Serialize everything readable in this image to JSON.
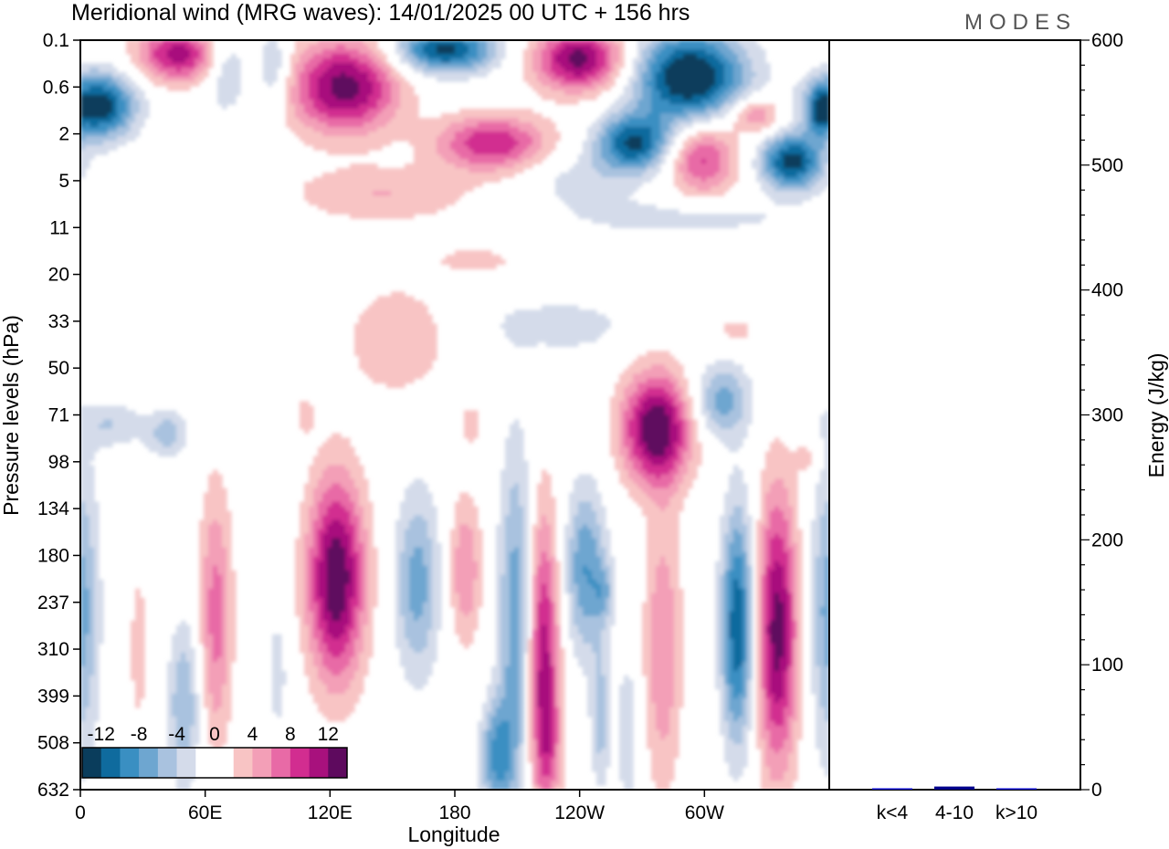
{
  "title": "Meridional wind (MRG waves):  14/01/2025  00 UTC  + 156 hrs",
  "logo": "MODES",
  "chart_data": [
    {
      "type": "heatmap",
      "title": "Meridional wind (MRG waves):  14/01/2025  00 UTC  + 156 hrs",
      "xlabel": "Longitude",
      "ylabel": "Pressure levels (hPa)",
      "x_ticks": [
        "0",
        "60E",
        "120E",
        "180",
        "120W",
        "60W"
      ],
      "y_ticks": [
        "0.1",
        "0.6",
        "2",
        "5",
        "11",
        "20",
        "33",
        "50",
        "71",
        "98",
        "134",
        "180",
        "237",
        "310",
        "399",
        "508",
        "632"
      ],
      "y_scale": "categorical pressure levels, increasing downward",
      "colorbar": {
        "labels": [
          "-12",
          "-8",
          "-4",
          "0",
          "4",
          "8",
          "12"
        ],
        "colors": [
          "#0a3d5c",
          "#0f6b9e",
          "#3a8fc2",
          "#6ea6d0",
          "#a9c2df",
          "#d4dbea",
          "#ffffff",
          "#ffffff",
          "#f8c4c4",
          "#f39fb7",
          "#e86aa6",
          "#d22d90",
          "#a8117d",
          "#5e0a5e"
        ],
        "placement": "bottom-left"
      },
      "blobs": [
        {
          "lon": 8,
          "level": 1.4,
          "value": -14,
          "rx": 18,
          "ry": 0.7
        },
        {
          "lon": 47,
          "level": 0.3,
          "value": 11,
          "rx": 20,
          "ry": 0.6
        },
        {
          "lon": 70,
          "level": 0.6,
          "value": -5,
          "rx": 10,
          "ry": 0.9
        },
        {
          "lon": 93,
          "level": 0.6,
          "value": -5,
          "rx": 8,
          "ry": 0.8
        },
        {
          "lon": 127,
          "level": 1.0,
          "value": 13,
          "rx": 26,
          "ry": 1.0
        },
        {
          "lon": 175,
          "level": 0.2,
          "value": -13,
          "rx": 24,
          "ry": 0.5
        },
        {
          "lon": 198,
          "level": 2.2,
          "value": 10,
          "rx": 27,
          "ry": 0.6
        },
        {
          "lon": 240,
          "level": 0.4,
          "value": 13,
          "rx": 22,
          "ry": 0.7
        },
        {
          "lon": 266,
          "level": 2.2,
          "value": -12,
          "rx": 18,
          "ry": 0.6
        },
        {
          "lon": 293,
          "level": 0.8,
          "value": -15,
          "rx": 27,
          "ry": 1.0
        },
        {
          "lon": 299,
          "level": 2.5,
          "value": 9,
          "rx": 17,
          "ry": 0.8
        },
        {
          "lon": 324,
          "level": 1.6,
          "value": 7,
          "rx": 13,
          "ry": 0.4
        },
        {
          "lon": 342,
          "level": 2.6,
          "value": -13,
          "rx": 15,
          "ry": 0.6
        },
        {
          "lon": 355,
          "level": 1.5,
          "value": -6,
          "rx": 5,
          "ry": 0.5
        },
        {
          "lon": 145,
          "level": 3.3,
          "value": 4,
          "rx": 44,
          "ry": 0.6
        },
        {
          "lon": 92,
          "level": 2.8,
          "value": 3,
          "rx": 12,
          "ry": 0.5
        },
        {
          "lon": 95,
          "level": 2.9,
          "value": -3,
          "rx": 8,
          "ry": 0.6
        },
        {
          "lon": 240,
          "level": 3.0,
          "value": -3,
          "rx": 28,
          "ry": 0.6
        },
        {
          "lon": 290,
          "level": 3.8,
          "value": -3,
          "rx": 58,
          "ry": 0.4
        },
        {
          "lon": 190,
          "level": 4.7,
          "value": 3,
          "rx": 22,
          "ry": 0.3
        },
        {
          "lon": 62,
          "level": 5.0,
          "value": 2,
          "rx": 10,
          "ry": 0.3
        },
        {
          "lon": 152,
          "level": 6.4,
          "value": 4,
          "rx": 24,
          "ry": 1.2
        },
        {
          "lon": 230,
          "level": 6.1,
          "value": -4,
          "rx": 30,
          "ry": 0.5
        },
        {
          "lon": 315,
          "level": 6.2,
          "value": 3,
          "rx": 10,
          "ry": 0.3
        },
        {
          "lon": 15,
          "level": 8.2,
          "value": -4,
          "rx": 16,
          "ry": 0.5
        },
        {
          "lon": 42,
          "level": 8.4,
          "value": -5,
          "rx": 10,
          "ry": 0.5
        },
        {
          "lon": 108,
          "level": 8.0,
          "value": 3,
          "rx": 5,
          "ry": 0.4
        },
        {
          "lon": 277,
          "level": 8.3,
          "value": 14,
          "rx": 17,
          "ry": 1.2
        },
        {
          "lon": 308,
          "level": 7.7,
          "value": -7,
          "rx": 14,
          "ry": 0.8
        },
        {
          "lon": 188,
          "level": 8.2,
          "value": 3,
          "rx": 6,
          "ry": 0.5
        },
        {
          "lon": 350,
          "level": 8.9,
          "value": 3,
          "rx": 6,
          "ry": 0.4
        },
        {
          "lon": 123,
          "level": 11.5,
          "value": 14,
          "rx": 14,
          "ry": 2.2
        },
        {
          "lon": 162,
          "level": 11.6,
          "value": -7,
          "rx": 11,
          "ry": 2.0
        },
        {
          "lon": 185,
          "level": 11.3,
          "value": 6,
          "rx": 8,
          "ry": 1.6
        },
        {
          "lon": 210,
          "level": 12.5,
          "value": -8,
          "rx": 9,
          "ry": 3.8
        },
        {
          "lon": 222,
          "level": 13.3,
          "value": 12,
          "rx": 8,
          "ry": 3.3
        },
        {
          "lon": 243,
          "level": 11.3,
          "value": -8,
          "rx": 10,
          "ry": 1.8
        },
        {
          "lon": 252,
          "level": 11.8,
          "value": -4,
          "rx": 5,
          "ry": 0.6
        },
        {
          "lon": 280,
          "level": 13.0,
          "value": 6,
          "rx": 9,
          "ry": 3.0
        },
        {
          "lon": 316,
          "level": 12.5,
          "value": -12,
          "rx": 8,
          "ry": 2.5
        },
        {
          "lon": 335,
          "level": 12.6,
          "value": 13,
          "rx": 10,
          "ry": 3.0
        },
        {
          "lon": 360,
          "level": 12.2,
          "value": -7,
          "rx": 9,
          "ry": 3.2
        },
        {
          "lon": 65,
          "level": 12.3,
          "value": 7,
          "rx": 8,
          "ry": 2.8
        },
        {
          "lon": 50,
          "level": 14.2,
          "value": -6,
          "rx": 8,
          "ry": 1.8
        },
        {
          "lon": 200,
          "level": 15.3,
          "value": -8,
          "rx": 8,
          "ry": 1.2
        },
        {
          "lon": 226,
          "level": 15.0,
          "value": 3,
          "rx": 6,
          "ry": 1.2
        },
        {
          "lon": 28,
          "level": 13.0,
          "value": 3,
          "rx": 5,
          "ry": 2.0
        },
        {
          "lon": 95,
          "level": 13.5,
          "value": -3,
          "rx": 5,
          "ry": 1.6
        },
        {
          "lon": 250,
          "level": 14.5,
          "value": -5,
          "rx": 5,
          "ry": 1.5
        },
        {
          "lon": 263,
          "level": 14.8,
          "value": -4,
          "rx": 5,
          "ry": 1.6
        }
      ]
    },
    {
      "type": "bar",
      "categories": [
        "k<4",
        "4-10",
        "k>10"
      ],
      "values": [
        0.5,
        2.5,
        0.5
      ],
      "ylabel": "Energy (J/kg)",
      "ylim": [
        0,
        600
      ],
      "y_ticks": [
        "0",
        "100",
        "200",
        "300",
        "400",
        "500",
        "600"
      ],
      "bar_colors": [
        "#0000cc",
        "#00008b",
        "#0000cc"
      ]
    }
  ]
}
